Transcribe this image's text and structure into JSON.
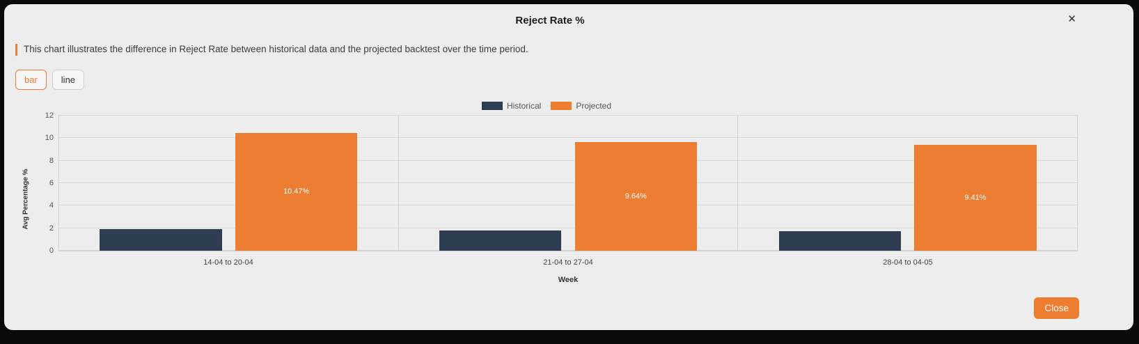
{
  "modal": {
    "title": "Reject Rate %",
    "close_icon": "✕",
    "description": "This chart illustrates the difference in Reject Rate between historical data and the projected backtest over the time period.",
    "toggle": {
      "bar_label": "bar",
      "line_label": "line",
      "active": "bar"
    },
    "close_button": "Close"
  },
  "colors": {
    "accent": "#ed7d31",
    "historical": "#2e3d52",
    "projected": "#ed7d31",
    "modal_background": "#ededed"
  },
  "chart_data": {
    "type": "bar",
    "categories": [
      "14-04 to 20-04",
      "21-04 to 27-04",
      "28-04 to 04-05"
    ],
    "series": [
      {
        "name": "Historical",
        "color": "#2e3d52",
        "values": [
          1.9,
          1.8,
          1.7
        ]
      },
      {
        "name": "Projected",
        "color": "#ed7d31",
        "values": [
          10.47,
          9.64,
          9.41
        ],
        "labels": [
          "10.47%",
          "9.64%",
          "9.41%"
        ]
      }
    ],
    "title": "",
    "xlabel": "Week",
    "ylabel": "Avg Percentage %",
    "ylim": [
      0,
      12
    ],
    "yticks": [
      0,
      2,
      4,
      6,
      8,
      10,
      12
    ],
    "legend_position": "top",
    "grid": true
  }
}
